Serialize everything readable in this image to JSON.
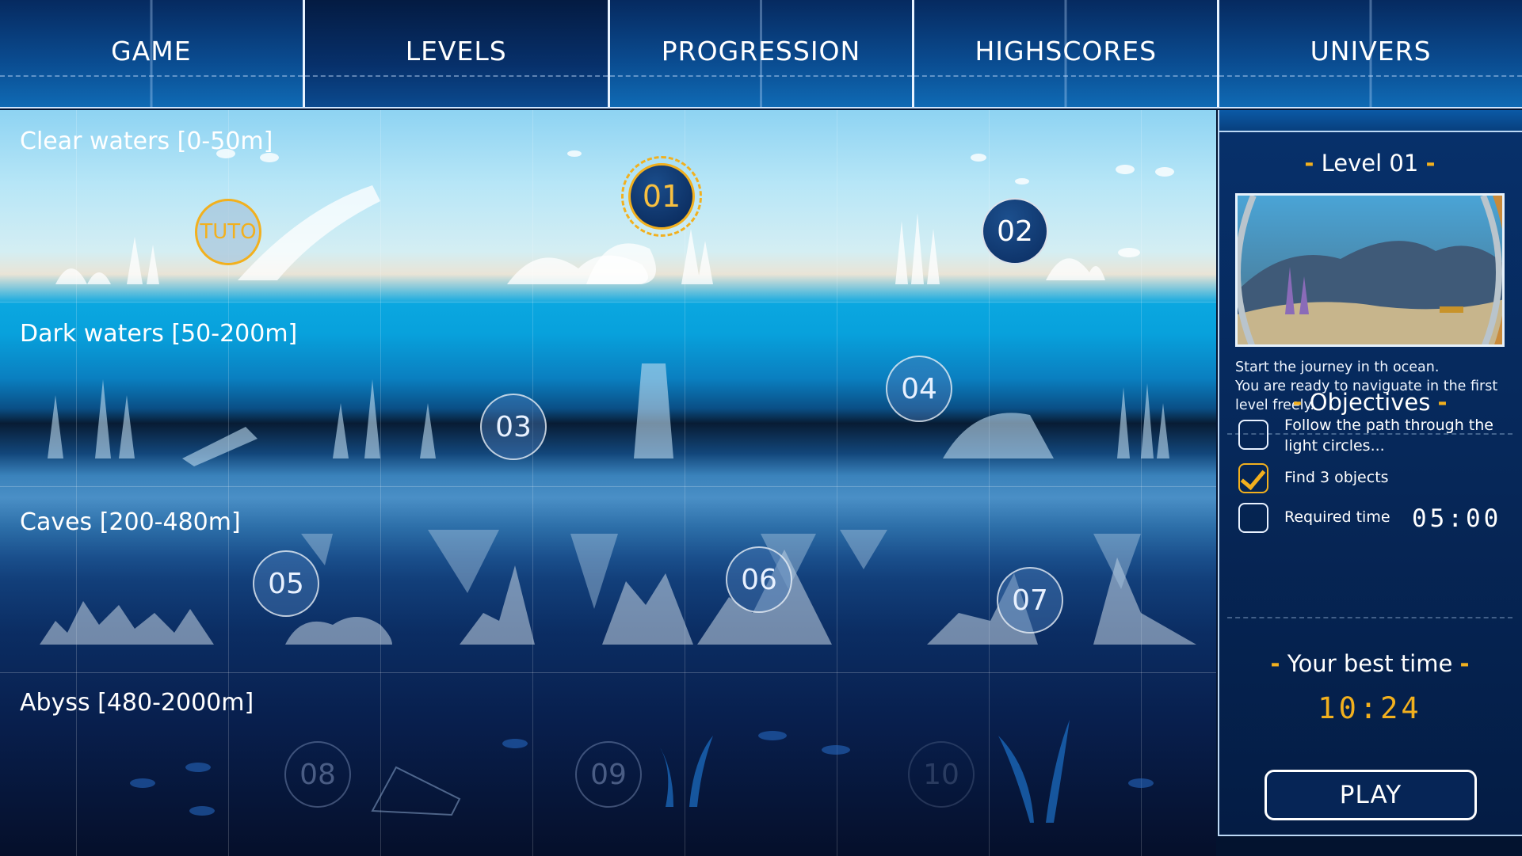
{
  "nav": {
    "tabs": [
      {
        "label": "GAME"
      },
      {
        "label": "LEVELS"
      },
      {
        "label": "PROGRESSION"
      },
      {
        "label": "HIGHSCORES"
      },
      {
        "label": "UNIVERS"
      }
    ],
    "active": "LEVELS"
  },
  "zones": [
    {
      "label": "Clear waters [0-50m]"
    },
    {
      "label": "Dark waters [50-200m]"
    },
    {
      "label": "Caves [200-480m]"
    },
    {
      "label": "Abyss [480-2000m]"
    }
  ],
  "levels": {
    "tuto": "TUTO",
    "l01": "01",
    "l02": "02",
    "l03": "03",
    "l04": "04",
    "l05": "05",
    "l06": "06",
    "l07": "07",
    "l08": "08",
    "l09": "09",
    "l10": "10"
  },
  "panel": {
    "level_title": "Level 01",
    "description_line1": "Start the journey in th ocean.",
    "description_line2": "You are ready to naviguate in the first level freely.",
    "objectives_title": "Objectives",
    "objectives": [
      {
        "label": "Follow the path through the light circles...",
        "checked": false
      },
      {
        "label": "Find 3 objects",
        "checked": true
      },
      {
        "label": "Required time",
        "checked": false
      }
    ],
    "required_time": "05:00",
    "best_time_title": "Your best time",
    "best_time": "10:24",
    "play_label": "PLAY"
  },
  "colors": {
    "accent": "#f2b01e",
    "panel_bg": "#062758",
    "nav_bg": "#0a4a8e"
  }
}
